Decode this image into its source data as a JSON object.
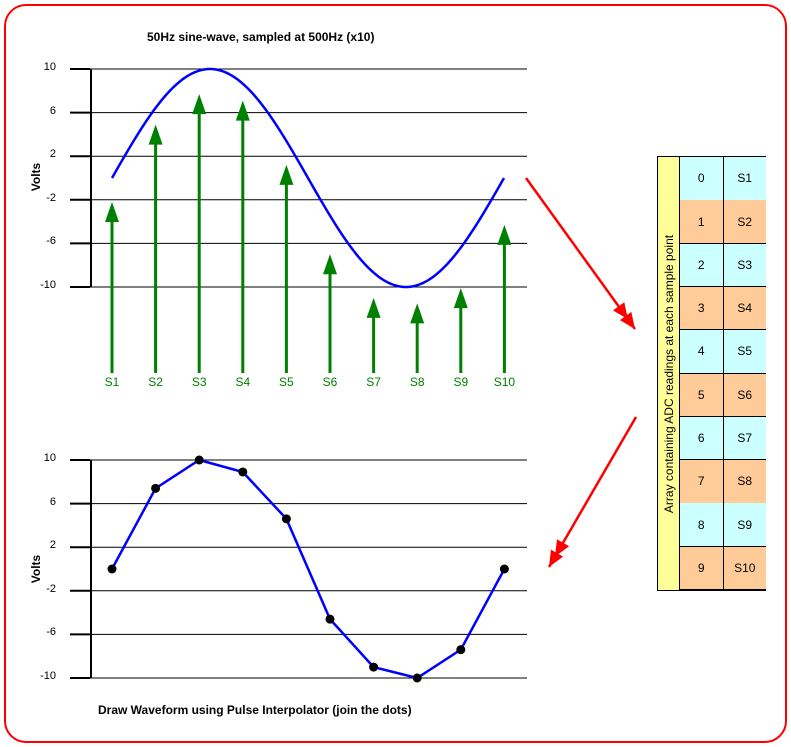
{
  "top_chart": {
    "title": "50Hz sine-wave, sampled at 500Hz (x10)",
    "ylabel": "Volts",
    "yticks": [
      "10",
      "6",
      "2",
      "-2",
      "-6",
      "-10"
    ],
    "sample_labels": [
      "S1",
      "S2",
      "S3",
      "S4",
      "S5",
      "S6",
      "S7",
      "S8",
      "S9",
      "S10"
    ],
    "arrow_tip_volts": [
      -2.2,
      4.9,
      7.7,
      7.1,
      1.2,
      -7.0,
      -11.0,
      -11.5,
      -10.1,
      -4.3
    ],
    "colors": {
      "curve": "#0000ff",
      "arrows": "#008000"
    }
  },
  "bottom_chart": {
    "caption": "Draw Waveform using Pulse Interpolator (join the dots)",
    "ylabel": "Volts",
    "yticks": [
      "10",
      "6",
      "2",
      "-2",
      "-6",
      "-10"
    ],
    "points": [
      0,
      7.4,
      10,
      8.9,
      4.6,
      -4.6,
      -9,
      -10,
      -7.4,
      0
    ]
  },
  "array_table": {
    "caption": "Array containing ADC readings at each sample point",
    "rows": [
      {
        "index": "0",
        "value": "S1"
      },
      {
        "index": "1",
        "value": "S2"
      },
      {
        "index": "2",
        "value": "S3"
      },
      {
        "index": "3",
        "value": "S4"
      },
      {
        "index": "4",
        "value": "S5"
      },
      {
        "index": "5",
        "value": "S6"
      },
      {
        "index": "6",
        "value": "S7"
      },
      {
        "index": "7",
        "value": "S8"
      },
      {
        "index": "8",
        "value": "S9"
      },
      {
        "index": "9",
        "value": "S10"
      }
    ],
    "colors": {
      "even": "#ccffff",
      "odd": "#ffcc99",
      "caption": "#ffff99"
    }
  }
}
